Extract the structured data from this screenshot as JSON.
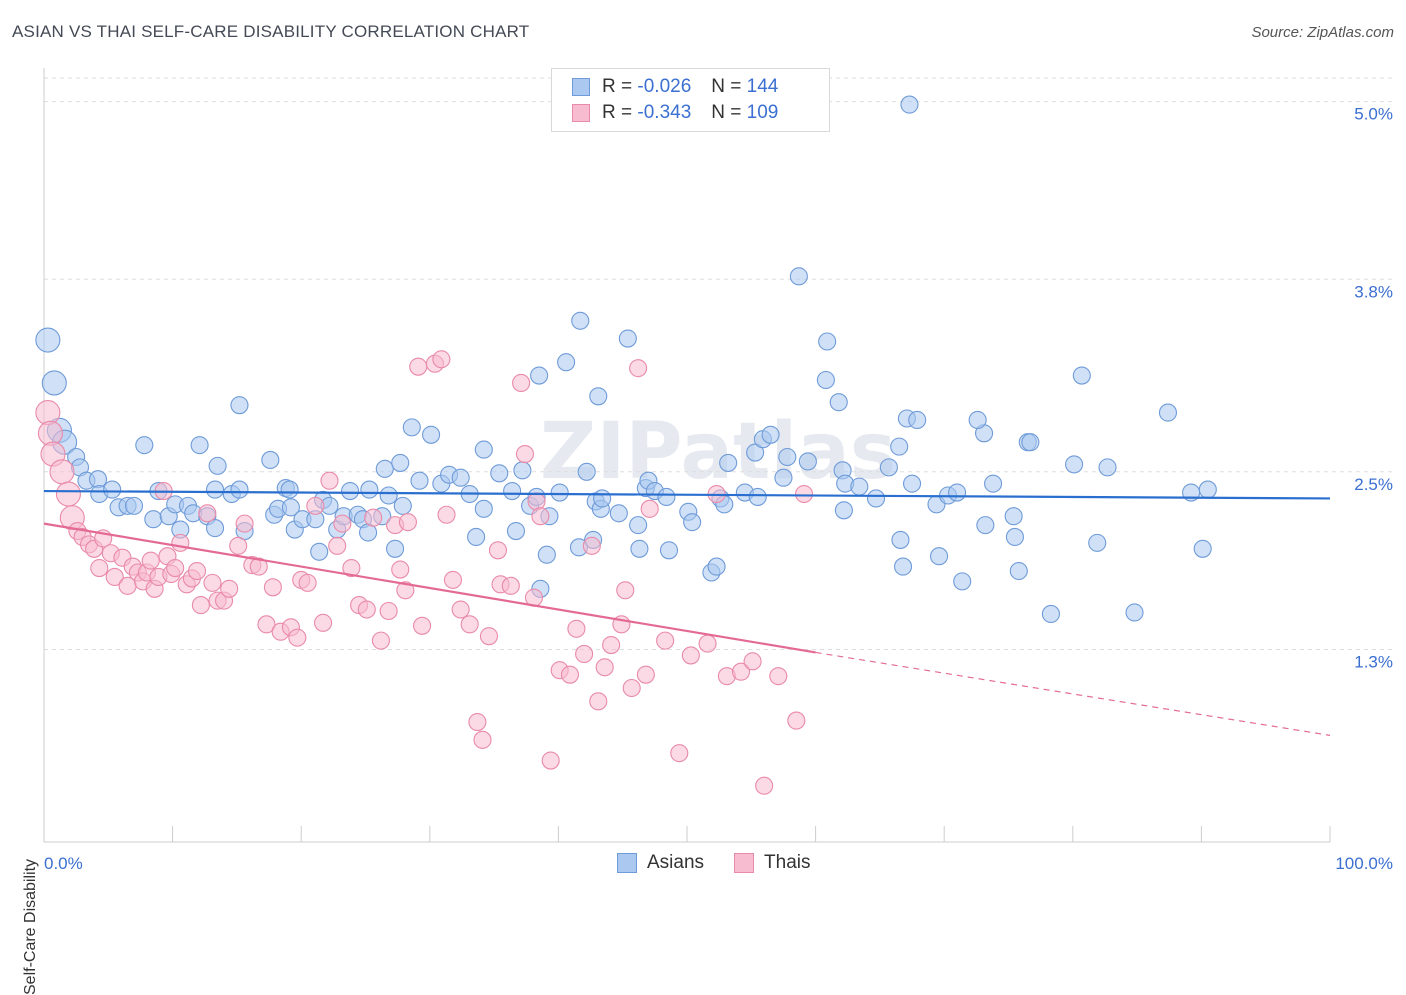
{
  "title": "ASIAN VS THAI SELF-CARE DISABILITY CORRELATION CHART",
  "source": "Source: ZipAtlas.com",
  "watermark": "ZIPatlas",
  "legend_top": [
    {
      "r_label": "R =",
      "r_value": "-0.026",
      "n_label": "N =",
      "n_value": "144"
    },
    {
      "r_label": "R =",
      "r_value": "-0.343",
      "n_label": "N =",
      "n_value": "109"
    }
  ],
  "legend_bottom": [
    "Asians",
    "Thais"
  ],
  "colors": {
    "asians_fill": "#aac8f0",
    "asians_stroke": "#6f9bd8",
    "asians_line": "#2a6fcf",
    "thais_fill": "#f7bcd0",
    "thais_stroke": "#e98aa9",
    "thais_line": "#e46a96",
    "tick_label": "#3b6fd1",
    "grid": "#dddddd"
  },
  "chart_data": {
    "type": "scatter",
    "title": "ASIAN VS THAI SELF-CARE DISABILITY CORRELATION CHART",
    "xlabel": "",
    "ylabel": "Self-Care Disability",
    "xlim": [
      0,
      100
    ],
    "ylim": [
      0.0,
      5.2
    ],
    "x_tick_labels": [
      "0.0%",
      "100.0%"
    ],
    "y_ticks": [
      1.3,
      2.5,
      3.8,
      5.0
    ],
    "y_tick_labels": [
      "1.3%",
      "2.5%",
      "3.8%",
      "5.0%"
    ],
    "grid": true,
    "legend": "top-center",
    "series": [
      {
        "name": "Asians",
        "trend": {
          "x": [
            0,
            100
          ],
          "y": [
            2.37,
            2.32
          ]
        },
        "points": [
          [
            0.3,
            3.39
          ],
          [
            0.8,
            3.1
          ],
          [
            1.2,
            2.78
          ],
          [
            1.6,
            2.7
          ],
          [
            2.5,
            2.6
          ],
          [
            2.8,
            2.53
          ],
          [
            3.3,
            2.44
          ],
          [
            4.2,
            2.45
          ],
          [
            4.3,
            2.35
          ],
          [
            5.3,
            2.38
          ],
          [
            5.8,
            2.26
          ],
          [
            6.5,
            2.27
          ],
          [
            7,
            2.27
          ],
          [
            7.8,
            2.68
          ],
          [
            8.5,
            2.18
          ],
          [
            8.9,
            2.37
          ],
          [
            9.7,
            2.2
          ],
          [
            10.2,
            2.28
          ],
          [
            10.6,
            2.11
          ],
          [
            11.2,
            2.27
          ],
          [
            11.6,
            2.22
          ],
          [
            12.1,
            2.68
          ],
          [
            12.7,
            2.2
          ],
          [
            13.3,
            2.38
          ],
          [
            13.5,
            2.54
          ],
          [
            13.3,
            2.12
          ],
          [
            14.6,
            2.35
          ],
          [
            15.2,
            2.95
          ],
          [
            15.2,
            2.38
          ],
          [
            15.6,
            2.1
          ],
          [
            17.6,
            2.58
          ],
          [
            17.9,
            2.21
          ],
          [
            18.8,
            2.39
          ],
          [
            18.2,
            2.25
          ],
          [
            19.1,
            2.38
          ],
          [
            19.2,
            2.26
          ],
          [
            19.5,
            2.11
          ],
          [
            20.1,
            2.18
          ],
          [
            21.1,
            2.18
          ],
          [
            21.4,
            1.96
          ],
          [
            21.7,
            2.31
          ],
          [
            22.8,
            2.11
          ],
          [
            22.2,
            2.27
          ],
          [
            23.3,
            2.2
          ],
          [
            23.8,
            2.37
          ],
          [
            24.4,
            2.21
          ],
          [
            24.8,
            2.18
          ],
          [
            25.2,
            2.09
          ],
          [
            25.3,
            2.38
          ],
          [
            26.3,
            2.2
          ],
          [
            26.8,
            2.34
          ],
          [
            27.3,
            1.98
          ],
          [
            26.5,
            2.52
          ],
          [
            27.7,
            2.56
          ],
          [
            27.9,
            2.27
          ],
          [
            28.6,
            2.8
          ],
          [
            29.2,
            2.44
          ],
          [
            30.1,
            2.75
          ],
          [
            30.9,
            2.42
          ],
          [
            31.5,
            2.48
          ],
          [
            32.4,
            2.46
          ],
          [
            33.1,
            2.35
          ],
          [
            33.6,
            2.06
          ],
          [
            34.2,
            2.25
          ],
          [
            34.2,
            2.65
          ],
          [
            35.4,
            2.49
          ],
          [
            36.4,
            2.37
          ],
          [
            37.2,
            2.51
          ],
          [
            36.7,
            2.1
          ],
          [
            37.8,
            2.27
          ],
          [
            38.3,
            2.33
          ],
          [
            38.5,
            3.15
          ],
          [
            38.6,
            1.71
          ],
          [
            39.1,
            1.94
          ],
          [
            39.3,
            2.2
          ],
          [
            40.1,
            2.36
          ],
          [
            40.6,
            3.24
          ],
          [
            41.7,
            3.52
          ],
          [
            42.2,
            2.5
          ],
          [
            41.6,
            1.99
          ],
          [
            42.7,
            2.04
          ],
          [
            42.9,
            2.3
          ],
          [
            43.3,
            2.25
          ],
          [
            43.4,
            2.32
          ],
          [
            43.1,
            3.01
          ],
          [
            44.7,
            2.22
          ],
          [
            45.4,
            3.4
          ],
          [
            46.3,
            1.98
          ],
          [
            46.2,
            2.14
          ],
          [
            46.8,
            2.39
          ],
          [
            47,
            2.44
          ],
          [
            47.5,
            2.37
          ],
          [
            48.4,
            2.33
          ],
          [
            48.6,
            1.97
          ],
          [
            50.1,
            2.23
          ],
          [
            50.4,
            2.16
          ],
          [
            51.9,
            1.82
          ],
          [
            52.3,
            1.86
          ],
          [
            52.6,
            2.32
          ],
          [
            53.2,
            2.56
          ],
          [
            52.9,
            2.28
          ],
          [
            54.5,
            2.36
          ],
          [
            55.5,
            2.33
          ],
          [
            55.3,
            2.63
          ],
          [
            55.9,
            2.72
          ],
          [
            56.5,
            2.75
          ],
          [
            57.5,
            2.46
          ],
          [
            57.8,
            2.6
          ],
          [
            58.7,
            3.82
          ],
          [
            59.4,
            2.57
          ],
          [
            60.8,
            3.12
          ],
          [
            60.9,
            3.38
          ],
          [
            61.8,
            2.97
          ],
          [
            62.1,
            2.51
          ],
          [
            62.2,
            2.24
          ],
          [
            62.3,
            2.42
          ],
          [
            63.4,
            2.4
          ],
          [
            64.7,
            2.32
          ],
          [
            65.7,
            2.53
          ],
          [
            66.6,
            2.04
          ],
          [
            66.5,
            2.67
          ],
          [
            66.8,
            1.86
          ],
          [
            67.1,
            2.86
          ],
          [
            67.5,
            2.42
          ],
          [
            67.9,
            2.85
          ],
          [
            69.4,
            2.28
          ],
          [
            69.6,
            1.93
          ],
          [
            70.3,
            2.34
          ],
          [
            71.4,
            1.76
          ],
          [
            71,
            2.36
          ],
          [
            73.1,
            2.76
          ],
          [
            73.8,
            2.42
          ],
          [
            72.6,
            2.85
          ],
          [
            73.2,
            2.14
          ],
          [
            75.5,
            2.06
          ],
          [
            75.4,
            2.2
          ],
          [
            75.8,
            1.83
          ],
          [
            76.5,
            2.7
          ],
          [
            76.7,
            2.7
          ],
          [
            78.3,
            1.54
          ],
          [
            67.3,
            4.98
          ],
          [
            80.1,
            2.55
          ],
          [
            80.7,
            3.15
          ],
          [
            81.9,
            2.02
          ],
          [
            82.7,
            2.53
          ],
          [
            87.4,
            2.9
          ],
          [
            89.2,
            2.36
          ],
          [
            84.8,
            1.55
          ],
          [
            90.1,
            1.98
          ],
          [
            90.5,
            2.38
          ]
        ]
      },
      {
        "name": "Thais",
        "trend": {
          "x": [
            0,
            60
          ],
          "y": [
            2.15,
            1.28
          ]
        },
        "trend_dashed": {
          "x": [
            60,
            100
          ],
          "y": [
            1.28,
            0.72
          ]
        },
        "points": [
          [
            0.3,
            2.9
          ],
          [
            0.5,
            2.76
          ],
          [
            0.7,
            2.62
          ],
          [
            1.4,
            2.5
          ],
          [
            1.9,
            2.35
          ],
          [
            2.2,
            2.19
          ],
          [
            2.6,
            2.1
          ],
          [
            3,
            2.06
          ],
          [
            3.5,
            2.01
          ],
          [
            3.9,
            1.98
          ],
          [
            4.3,
            1.85
          ],
          [
            4.6,
            2.05
          ],
          [
            5.2,
            1.95
          ],
          [
            5.5,
            1.79
          ],
          [
            6.1,
            1.92
          ],
          [
            6.5,
            1.73
          ],
          [
            6.9,
            1.86
          ],
          [
            7.3,
            1.82
          ],
          [
            7.7,
            1.76
          ],
          [
            8,
            1.82
          ],
          [
            8.3,
            1.9
          ],
          [
            8.6,
            1.71
          ],
          [
            8.9,
            1.79
          ],
          [
            9.3,
            2.37
          ],
          [
            9.6,
            1.93
          ],
          [
            9.9,
            1.81
          ],
          [
            10.2,
            1.85
          ],
          [
            10.6,
            2.02
          ],
          [
            11.1,
            1.74
          ],
          [
            11.5,
            1.78
          ],
          [
            11.9,
            1.83
          ],
          [
            12.2,
            1.6
          ],
          [
            12.7,
            2.22
          ],
          [
            13.1,
            1.75
          ],
          [
            13.5,
            1.63
          ],
          [
            14,
            1.63
          ],
          [
            14.4,
            1.71
          ],
          [
            15.1,
            2.0
          ],
          [
            15.6,
            2.15
          ],
          [
            16.2,
            1.87
          ],
          [
            16.7,
            1.86
          ],
          [
            17.3,
            1.47
          ],
          [
            17.8,
            1.72
          ],
          [
            18.4,
            1.42
          ],
          [
            19.2,
            1.45
          ],
          [
            19.7,
            1.38
          ],
          [
            20,
            1.77
          ],
          [
            20.5,
            1.75
          ],
          [
            21.1,
            2.27
          ],
          [
            21.7,
            1.48
          ],
          [
            22.2,
            2.44
          ],
          [
            22.8,
            2.0
          ],
          [
            23.2,
            2.15
          ],
          [
            23.9,
            1.85
          ],
          [
            24.5,
            1.6
          ],
          [
            25.1,
            1.57
          ],
          [
            25.6,
            2.19
          ],
          [
            26.2,
            1.36
          ],
          [
            26.8,
            1.56
          ],
          [
            27.3,
            2.14
          ],
          [
            27.7,
            1.84
          ],
          [
            28.3,
            2.16
          ],
          [
            29.1,
            3.21
          ],
          [
            29.4,
            1.46
          ],
          [
            30.4,
            3.23
          ],
          [
            30.9,
            3.26
          ],
          [
            31.3,
            2.21
          ],
          [
            31.8,
            1.77
          ],
          [
            32.4,
            1.57
          ],
          [
            33.1,
            1.47
          ],
          [
            33.7,
            0.81
          ],
          [
            34.1,
            0.69
          ],
          [
            35.3,
            1.97
          ],
          [
            35.5,
            1.74
          ],
          [
            36.3,
            1.73
          ],
          [
            37.1,
            3.1
          ],
          [
            37.4,
            2.62
          ],
          [
            38.3,
            2.3
          ],
          [
            38.6,
            2.2
          ],
          [
            39.4,
            0.55
          ],
          [
            40.1,
            1.16
          ],
          [
            40.9,
            1.13
          ],
          [
            41.4,
            1.44
          ],
          [
            42,
            1.27
          ],
          [
            42.6,
            2.0
          ],
          [
            43.1,
            0.95
          ],
          [
            44.1,
            1.33
          ],
          [
            44.9,
            1.47
          ],
          [
            45.7,
            1.04
          ],
          [
            46.2,
            3.2
          ],
          [
            47.1,
            2.25
          ],
          [
            48.3,
            1.36
          ],
          [
            49.4,
            0.6
          ],
          [
            50.3,
            1.26
          ],
          [
            51.6,
            1.34
          ],
          [
            52.3,
            2.35
          ],
          [
            53.1,
            1.12
          ],
          [
            54.2,
            1.15
          ],
          [
            55.1,
            1.22
          ],
          [
            56,
            0.38
          ],
          [
            57.1,
            1.12
          ],
          [
            58.5,
            0.82
          ],
          [
            59.1,
            2.35
          ],
          [
            28.1,
            1.7
          ],
          [
            34.6,
            1.39
          ],
          [
            38.1,
            1.65
          ],
          [
            43.6,
            1.18
          ],
          [
            45.2,
            1.7
          ],
          [
            46.8,
            1.13
          ]
        ]
      }
    ]
  }
}
